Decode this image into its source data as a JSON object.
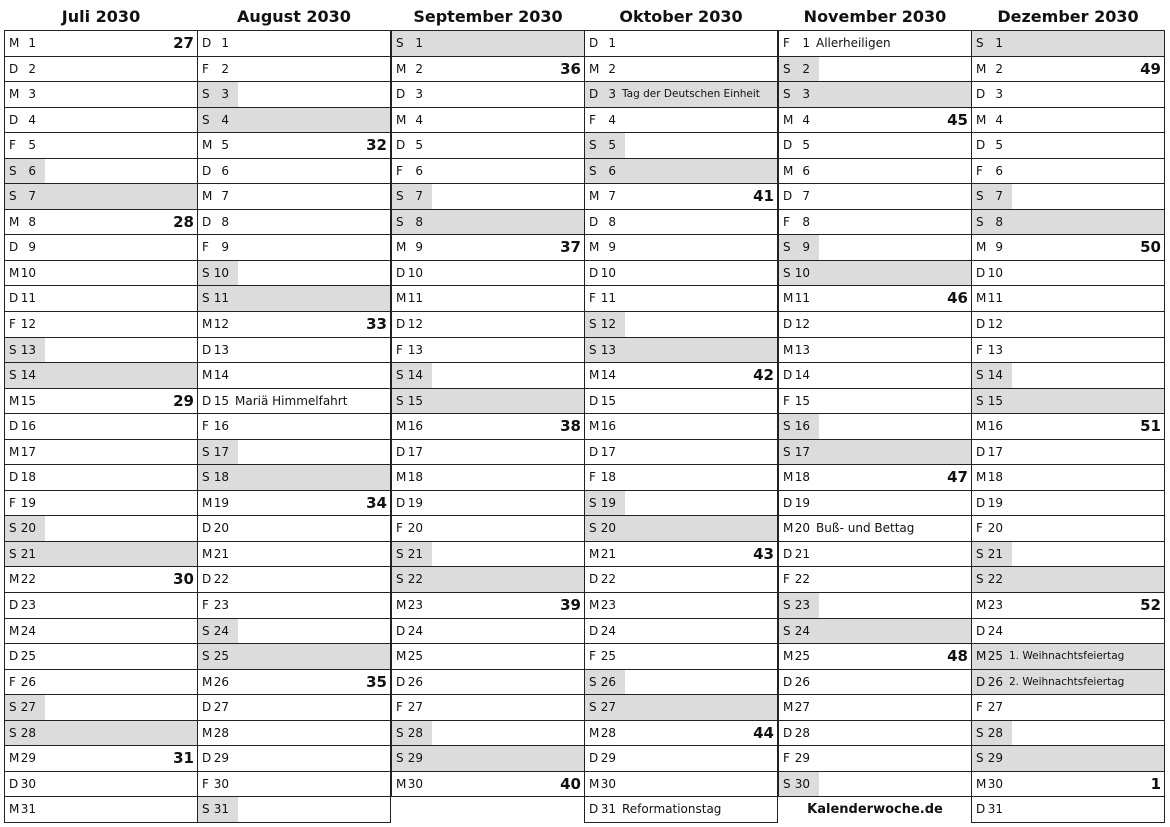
{
  "months": [
    {
      "title": "Juli 2030",
      "days": [
        [
          "M",
          "1",
          "27",
          "",
          ""
        ],
        [
          "D",
          "2",
          "",
          "",
          ""
        ],
        [
          "M",
          "3",
          "",
          "",
          ""
        ],
        [
          "D",
          "4",
          "",
          "",
          ""
        ],
        [
          "F",
          "5",
          "",
          "",
          ""
        ],
        [
          "S",
          "6",
          "",
          "sa",
          ""
        ],
        [
          "S",
          "7",
          "",
          "so",
          ""
        ],
        [
          "M",
          "8",
          "28",
          "",
          ""
        ],
        [
          "D",
          "9",
          "",
          "",
          ""
        ],
        [
          "M",
          "10",
          "",
          "",
          ""
        ],
        [
          "D",
          "11",
          "",
          "",
          ""
        ],
        [
          "F",
          "12",
          "",
          "",
          ""
        ],
        [
          "S",
          "13",
          "",
          "sa",
          ""
        ],
        [
          "S",
          "14",
          "",
          "so",
          ""
        ],
        [
          "M",
          "15",
          "29",
          "",
          ""
        ],
        [
          "D",
          "16",
          "",
          "",
          ""
        ],
        [
          "M",
          "17",
          "",
          "",
          ""
        ],
        [
          "D",
          "18",
          "",
          "",
          ""
        ],
        [
          "F",
          "19",
          "",
          "",
          ""
        ],
        [
          "S",
          "20",
          "",
          "sa",
          ""
        ],
        [
          "S",
          "21",
          "",
          "so",
          ""
        ],
        [
          "M",
          "22",
          "30",
          "",
          ""
        ],
        [
          "D",
          "23",
          "",
          "",
          ""
        ],
        [
          "M",
          "24",
          "",
          "",
          ""
        ],
        [
          "D",
          "25",
          "",
          "",
          ""
        ],
        [
          "F",
          "26",
          "",
          "",
          ""
        ],
        [
          "S",
          "27",
          "",
          "sa",
          ""
        ],
        [
          "S",
          "28",
          "",
          "so",
          ""
        ],
        [
          "M",
          "29",
          "31",
          "",
          ""
        ],
        [
          "D",
          "30",
          "",
          "",
          ""
        ],
        [
          "M",
          "31",
          "",
          "",
          ""
        ]
      ]
    },
    {
      "title": "August 2030",
      "days": [
        [
          "D",
          "1",
          "",
          "",
          ""
        ],
        [
          "F",
          "2",
          "",
          "",
          ""
        ],
        [
          "S",
          "3",
          "",
          "sa",
          ""
        ],
        [
          "S",
          "4",
          "",
          "so",
          ""
        ],
        [
          "M",
          "5",
          "32",
          "",
          ""
        ],
        [
          "D",
          "6",
          "",
          "",
          ""
        ],
        [
          "M",
          "7",
          "",
          "",
          ""
        ],
        [
          "D",
          "8",
          "",
          "",
          ""
        ],
        [
          "F",
          "9",
          "",
          "",
          ""
        ],
        [
          "S",
          "10",
          "",
          "sa",
          ""
        ],
        [
          "S",
          "11",
          "",
          "so",
          ""
        ],
        [
          "M",
          "12",
          "33",
          "",
          ""
        ],
        [
          "D",
          "13",
          "",
          "",
          ""
        ],
        [
          "M",
          "14",
          "",
          "",
          ""
        ],
        [
          "D",
          "15",
          "",
          "",
          "Mariä Himmelfahrt"
        ],
        [
          "F",
          "16",
          "",
          "",
          ""
        ],
        [
          "S",
          "17",
          "",
          "sa",
          ""
        ],
        [
          "S",
          "18",
          "",
          "so",
          ""
        ],
        [
          "M",
          "19",
          "34",
          "",
          ""
        ],
        [
          "D",
          "20",
          "",
          "",
          ""
        ],
        [
          "M",
          "21",
          "",
          "",
          ""
        ],
        [
          "D",
          "22",
          "",
          "",
          ""
        ],
        [
          "F",
          "23",
          "",
          "",
          ""
        ],
        [
          "S",
          "24",
          "",
          "sa",
          ""
        ],
        [
          "S",
          "25",
          "",
          "so",
          ""
        ],
        [
          "M",
          "26",
          "35",
          "",
          ""
        ],
        [
          "D",
          "27",
          "",
          "",
          ""
        ],
        [
          "M",
          "28",
          "",
          "",
          ""
        ],
        [
          "D",
          "29",
          "",
          "",
          ""
        ],
        [
          "F",
          "30",
          "",
          "",
          ""
        ],
        [
          "S",
          "31",
          "",
          "sa",
          ""
        ]
      ]
    },
    {
      "title": "September 2030",
      "days": [
        [
          "S",
          "1",
          "",
          "so",
          ""
        ],
        [
          "M",
          "2",
          "36",
          "",
          ""
        ],
        [
          "D",
          "3",
          "",
          "",
          ""
        ],
        [
          "M",
          "4",
          "",
          "",
          ""
        ],
        [
          "D",
          "5",
          "",
          "",
          ""
        ],
        [
          "F",
          "6",
          "",
          "",
          ""
        ],
        [
          "S",
          "7",
          "",
          "sa",
          ""
        ],
        [
          "S",
          "8",
          "",
          "so",
          ""
        ],
        [
          "M",
          "9",
          "37",
          "",
          ""
        ],
        [
          "D",
          "10",
          "",
          "",
          ""
        ],
        [
          "M",
          "11",
          "",
          "",
          ""
        ],
        [
          "D",
          "12",
          "",
          "",
          ""
        ],
        [
          "F",
          "13",
          "",
          "",
          ""
        ],
        [
          "S",
          "14",
          "",
          "sa",
          ""
        ],
        [
          "S",
          "15",
          "",
          "so",
          ""
        ],
        [
          "M",
          "16",
          "38",
          "",
          ""
        ],
        [
          "D",
          "17",
          "",
          "",
          ""
        ],
        [
          "M",
          "18",
          "",
          "",
          ""
        ],
        [
          "D",
          "19",
          "",
          "",
          ""
        ],
        [
          "F",
          "20",
          "",
          "",
          ""
        ],
        [
          "S",
          "21",
          "",
          "sa",
          ""
        ],
        [
          "S",
          "22",
          "",
          "so",
          ""
        ],
        [
          "M",
          "23",
          "39",
          "",
          ""
        ],
        [
          "D",
          "24",
          "",
          "",
          ""
        ],
        [
          "M",
          "25",
          "",
          "",
          ""
        ],
        [
          "D",
          "26",
          "",
          "",
          ""
        ],
        [
          "F",
          "27",
          "",
          "",
          ""
        ],
        [
          "S",
          "28",
          "",
          "sa",
          ""
        ],
        [
          "S",
          "29",
          "",
          "so",
          ""
        ],
        [
          "M",
          "30",
          "40",
          "",
          ""
        ]
      ]
    },
    {
      "title": "Oktober 2030",
      "days": [
        [
          "D",
          "1",
          "",
          "",
          ""
        ],
        [
          "M",
          "2",
          "",
          "",
          ""
        ],
        [
          "D",
          "3",
          "",
          "hol",
          "Tag der Deutschen Einheit"
        ],
        [
          "F",
          "4",
          "",
          "",
          ""
        ],
        [
          "S",
          "5",
          "",
          "sa",
          ""
        ],
        [
          "S",
          "6",
          "",
          "so",
          ""
        ],
        [
          "M",
          "7",
          "41",
          "",
          ""
        ],
        [
          "D",
          "8",
          "",
          "",
          ""
        ],
        [
          "M",
          "9",
          "",
          "",
          ""
        ],
        [
          "D",
          "10",
          "",
          "",
          ""
        ],
        [
          "F",
          "11",
          "",
          "",
          ""
        ],
        [
          "S",
          "12",
          "",
          "sa",
          ""
        ],
        [
          "S",
          "13",
          "",
          "so",
          ""
        ],
        [
          "M",
          "14",
          "42",
          "",
          ""
        ],
        [
          "D",
          "15",
          "",
          "",
          ""
        ],
        [
          "M",
          "16",
          "",
          "",
          ""
        ],
        [
          "D",
          "17",
          "",
          "",
          ""
        ],
        [
          "F",
          "18",
          "",
          "",
          ""
        ],
        [
          "S",
          "19",
          "",
          "sa",
          ""
        ],
        [
          "S",
          "20",
          "",
          "so",
          ""
        ],
        [
          "M",
          "21",
          "43",
          "",
          ""
        ],
        [
          "D",
          "22",
          "",
          "",
          ""
        ],
        [
          "M",
          "23",
          "",
          "",
          ""
        ],
        [
          "D",
          "24",
          "",
          "",
          ""
        ],
        [
          "F",
          "25",
          "",
          "",
          ""
        ],
        [
          "S",
          "26",
          "",
          "sa",
          ""
        ],
        [
          "S",
          "27",
          "",
          "so",
          ""
        ],
        [
          "M",
          "28",
          "44",
          "",
          ""
        ],
        [
          "D",
          "29",
          "",
          "",
          ""
        ],
        [
          "M",
          "30",
          "",
          "",
          ""
        ],
        [
          "D",
          "31",
          "",
          "",
          "Reformationstag"
        ]
      ]
    },
    {
      "title": "November 2030",
      "days": [
        [
          "F",
          "1",
          "",
          "",
          "Allerheiligen"
        ],
        [
          "S",
          "2",
          "",
          "sa",
          ""
        ],
        [
          "S",
          "3",
          "",
          "so",
          ""
        ],
        [
          "M",
          "4",
          "45",
          "",
          ""
        ],
        [
          "D",
          "5",
          "",
          "",
          ""
        ],
        [
          "M",
          "6",
          "",
          "",
          ""
        ],
        [
          "D",
          "7",
          "",
          "",
          ""
        ],
        [
          "F",
          "8",
          "",
          "",
          ""
        ],
        [
          "S",
          "9",
          "",
          "sa",
          ""
        ],
        [
          "S",
          "10",
          "",
          "so",
          ""
        ],
        [
          "M",
          "11",
          "46",
          "",
          ""
        ],
        [
          "D",
          "12",
          "",
          "",
          ""
        ],
        [
          "M",
          "13",
          "",
          "",
          ""
        ],
        [
          "D",
          "14",
          "",
          "",
          ""
        ],
        [
          "F",
          "15",
          "",
          "",
          ""
        ],
        [
          "S",
          "16",
          "",
          "sa",
          ""
        ],
        [
          "S",
          "17",
          "",
          "so",
          ""
        ],
        [
          "M",
          "18",
          "47",
          "",
          ""
        ],
        [
          "D",
          "19",
          "",
          "",
          ""
        ],
        [
          "M",
          "20",
          "",
          "",
          "Buß- und Bettag"
        ],
        [
          "D",
          "21",
          "",
          "",
          ""
        ],
        [
          "F",
          "22",
          "",
          "",
          ""
        ],
        [
          "S",
          "23",
          "",
          "sa",
          ""
        ],
        [
          "S",
          "24",
          "",
          "so",
          ""
        ],
        [
          "M",
          "25",
          "48",
          "",
          ""
        ],
        [
          "D",
          "26",
          "",
          "",
          ""
        ],
        [
          "M",
          "27",
          "",
          "",
          ""
        ],
        [
          "D",
          "28",
          "",
          "",
          ""
        ],
        [
          "F",
          "29",
          "",
          "",
          ""
        ],
        [
          "S",
          "30",
          "",
          "sa",
          ""
        ]
      ]
    },
    {
      "title": "Dezember 2030",
      "days": [
        [
          "S",
          "1",
          "",
          "so",
          ""
        ],
        [
          "M",
          "2",
          "49",
          "",
          ""
        ],
        [
          "D",
          "3",
          "",
          "",
          ""
        ],
        [
          "M",
          "4",
          "",
          "",
          ""
        ],
        [
          "D",
          "5",
          "",
          "",
          ""
        ],
        [
          "F",
          "6",
          "",
          "",
          ""
        ],
        [
          "S",
          "7",
          "",
          "sa",
          ""
        ],
        [
          "S",
          "8",
          "",
          "so",
          ""
        ],
        [
          "M",
          "9",
          "50",
          "",
          ""
        ],
        [
          "D",
          "10",
          "",
          "",
          ""
        ],
        [
          "M",
          "11",
          "",
          "",
          ""
        ],
        [
          "D",
          "12",
          "",
          "",
          ""
        ],
        [
          "F",
          "13",
          "",
          "",
          ""
        ],
        [
          "S",
          "14",
          "",
          "sa",
          ""
        ],
        [
          "S",
          "15",
          "",
          "so",
          ""
        ],
        [
          "M",
          "16",
          "51",
          "",
          ""
        ],
        [
          "D",
          "17",
          "",
          "",
          ""
        ],
        [
          "M",
          "18",
          "",
          "",
          ""
        ],
        [
          "D",
          "19",
          "",
          "",
          ""
        ],
        [
          "F",
          "20",
          "",
          "",
          ""
        ],
        [
          "S",
          "21",
          "",
          "sa",
          ""
        ],
        [
          "S",
          "22",
          "",
          "so",
          ""
        ],
        [
          "M",
          "23",
          "52",
          "",
          ""
        ],
        [
          "D",
          "24",
          "",
          "",
          ""
        ],
        [
          "M",
          "25",
          "",
          "hol",
          "1. Weihnachtsfeiertag"
        ],
        [
          "D",
          "26",
          "",
          "hol",
          "2. Weihnachtsfeiertag"
        ],
        [
          "F",
          "27",
          "",
          "",
          ""
        ],
        [
          "S",
          "28",
          "",
          "sa",
          ""
        ],
        [
          "S",
          "29",
          "",
          "so",
          ""
        ],
        [
          "M",
          "30",
          "1",
          "",
          ""
        ],
        [
          "D",
          "31",
          "",
          "",
          ""
        ]
      ]
    }
  ],
  "footer": "Kalenderwoche.de",
  "colors": {
    "weekend_shade": "#dcdcdc",
    "border": "#222222"
  }
}
